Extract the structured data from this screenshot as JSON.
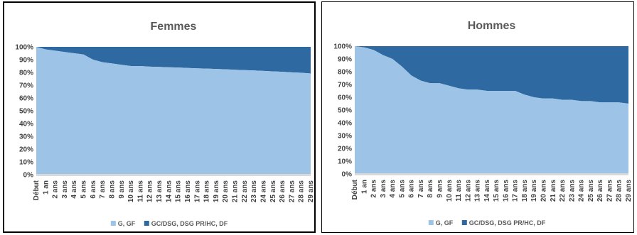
{
  "colors": {
    "g_gf": "#9dc3e6",
    "gc_dsg": "#2e6aa1",
    "baseline": "#d9d9d9"
  },
  "chart_data": [
    {
      "type": "area",
      "stacked": "percent",
      "title": "Femmes",
      "xlabel": "",
      "ylabel": "",
      "ylim": [
        0,
        100
      ],
      "yticks": [
        "0%",
        "10%",
        "20%",
        "30%",
        "40%",
        "50%",
        "60%",
        "70%",
        "80%",
        "90%",
        "100%"
      ],
      "categories": [
        "Début",
        "1 an",
        "2 ans",
        "3 ans",
        "4 ans",
        "5 ans",
        "6 ans",
        "7 ans",
        "8 ans",
        "9 ans",
        "10 ans",
        "11 ans",
        "12 ans",
        "13 ans",
        "14 ans",
        "15 ans",
        "16 ans",
        "17 ans",
        "18 ans",
        "19 ans",
        "20 ans",
        "21 ans",
        "22 ans",
        "23 ans",
        "24 ans",
        "25 ans",
        "26 ans",
        "27 ans",
        "28 ans",
        "29 ans"
      ],
      "legend_position": "bottom",
      "series": [
        {
          "name": "G, GF",
          "values": [
            100,
            98,
            97,
            96,
            95,
            94,
            90,
            88,
            87,
            86,
            85,
            85,
            84.5,
            84.3,
            84,
            83.8,
            83.5,
            83.2,
            83,
            82.7,
            82.4,
            82.1,
            81.8,
            81.5,
            81.2,
            80.8,
            80.5,
            80.1,
            79.7,
            79.2
          ]
        },
        {
          "name": "GC/DSG, DSG PR/HC, DF",
          "values": [
            0,
            2,
            3,
            4,
            5,
            6,
            10,
            12,
            13,
            14,
            15,
            15,
            15.5,
            15.7,
            16,
            16.2,
            16.5,
            16.8,
            17,
            17.3,
            17.6,
            17.9,
            18.2,
            18.5,
            18.8,
            19.2,
            19.5,
            19.9,
            20.3,
            20.8
          ]
        }
      ]
    },
    {
      "type": "area",
      "stacked": "percent",
      "title": "Hommes",
      "xlabel": "",
      "ylabel": "",
      "ylim": [
        0,
        100
      ],
      "yticks": [
        "0%",
        "10%",
        "20%",
        "30%",
        "40%",
        "50%",
        "60%",
        "70%",
        "80%",
        "90%",
        "100%"
      ],
      "categories": [
        "Début",
        "1 an",
        "2 ans",
        "3 ans",
        "4 ans",
        "5 ans",
        "6 ans",
        "7 ans",
        "8 ans",
        "9 ans",
        "10 ans",
        "11 ans",
        "12 ans",
        "13 ans",
        "14 ans",
        "15 ans",
        "16 ans",
        "17 ans",
        "18 ans",
        "19 ans",
        "20 ans",
        "21 ans",
        "22 ans",
        "23 ans",
        "24 ans",
        "25 ans",
        "26 ans",
        "27 ans",
        "28 ans",
        "29 ans"
      ],
      "legend_position": "bottom",
      "series": [
        {
          "name": "G, GF",
          "values": [
            100,
            99,
            97,
            93,
            90,
            84,
            77,
            73,
            71,
            71,
            69,
            67,
            66,
            66,
            65,
            65,
            65,
            65,
            62,
            60,
            59,
            59,
            58,
            58,
            57,
            57,
            56,
            56,
            56,
            55
          ]
        },
        {
          "name": "GC/DSG, DSG PR/HC, DF",
          "values": [
            0,
            1,
            3,
            7,
            10,
            16,
            23,
            27,
            29,
            29,
            31,
            33,
            34,
            34,
            35,
            35,
            35,
            35,
            38,
            40,
            41,
            41,
            42,
            42,
            43,
            43,
            44,
            44,
            44,
            45
          ]
        }
      ]
    }
  ]
}
